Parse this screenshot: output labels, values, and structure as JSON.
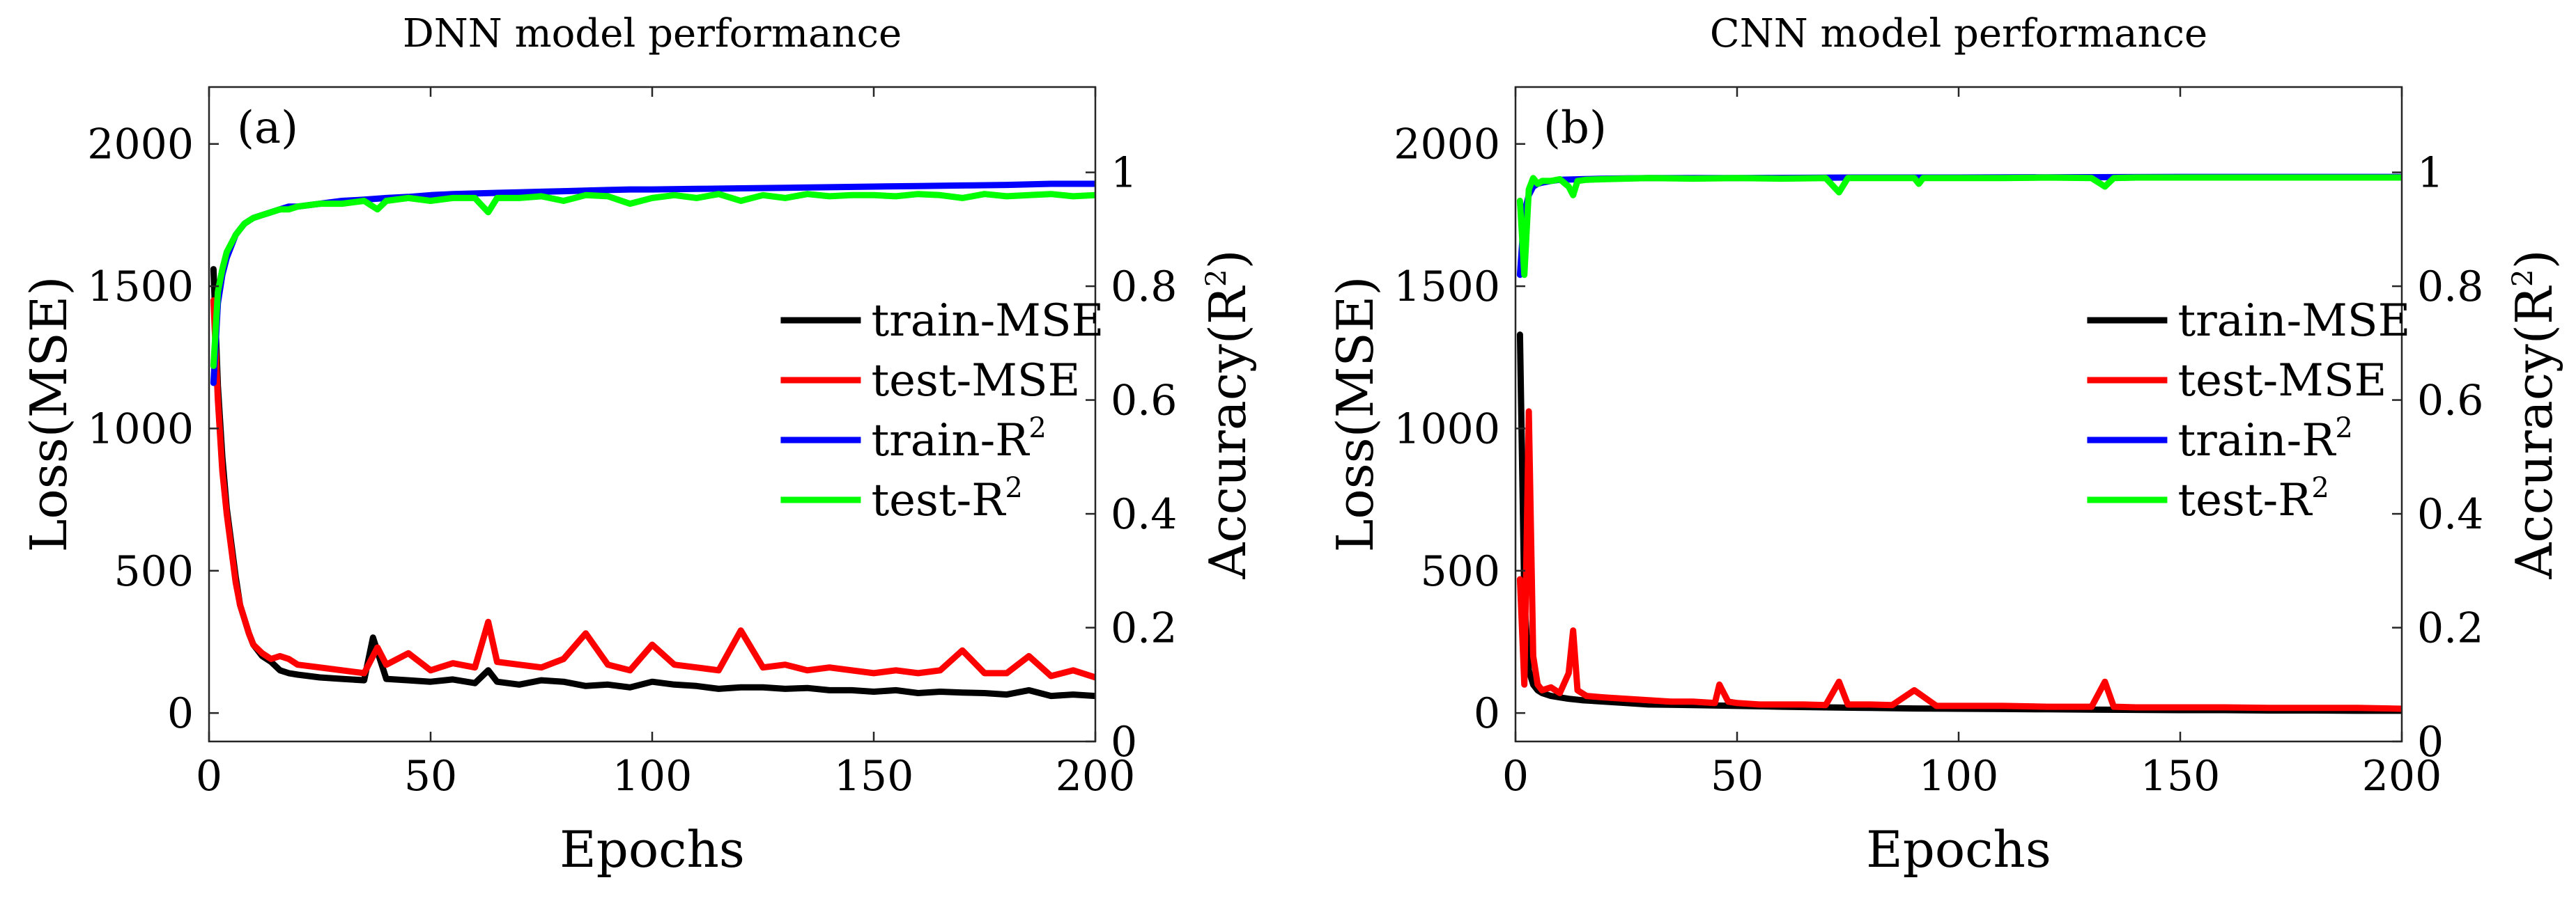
{
  "figure": {
    "panels": 2
  },
  "chart_data": [
    {
      "type": "line",
      "panel_label": "(a)",
      "title": "DNN model performance",
      "xlabel": "Epochs",
      "ylabel_left": "Loss(MSE)",
      "ylabel_right": "Accuracy(R",
      "ylabel_right_sup": "2",
      "ylabel_right_close": ")",
      "xlim": [
        0,
        200
      ],
      "ylim_left": [
        -100,
        2200
      ],
      "ylim_right": [
        0,
        1.15
      ],
      "xticks": [
        0,
        50,
        100,
        150,
        200
      ],
      "yticks_left": [
        0,
        500,
        1000,
        1500,
        2000
      ],
      "yticks_right": [
        0,
        0.2,
        0.4,
        0.6,
        0.8,
        1
      ],
      "ytick_labels_right": [
        "0",
        "0.2",
        "0.4",
        "0.6",
        "0.8",
        "1"
      ],
      "legend_position": "center-right",
      "series": [
        {
          "name": "train-MSE",
          "sup": "",
          "axis": "left",
          "color": "#000000",
          "x": [
            1,
            2,
            3,
            4,
            5,
            6,
            7,
            8,
            9,
            10,
            12,
            14,
            16,
            18,
            20,
            25,
            30,
            35,
            37,
            40,
            45,
            50,
            55,
            60,
            63,
            65,
            70,
            75,
            80,
            85,
            90,
            95,
            100,
            105,
            110,
            115,
            120,
            125,
            130,
            135,
            140,
            145,
            150,
            155,
            160,
            165,
            170,
            175,
            180,
            185,
            190,
            195,
            200
          ],
          "y": [
            1560,
            1150,
            900,
            720,
            600,
            480,
            380,
            330,
            280,
            240,
            200,
            180,
            150,
            140,
            135,
            125,
            120,
            115,
            265,
            120,
            115,
            110,
            118,
            105,
            150,
            110,
            100,
            115,
            110,
            95,
            100,
            90,
            110,
            100,
            95,
            85,
            90,
            90,
            85,
            88,
            80,
            80,
            75,
            80,
            70,
            75,
            72,
            70,
            65,
            80,
            60,
            65,
            60
          ]
        },
        {
          "name": "test-MSE",
          "sup": "",
          "axis": "left",
          "color": "#ff0000",
          "x": [
            1,
            2,
            3,
            4,
            5,
            6,
            7,
            8,
            9,
            10,
            12,
            14,
            16,
            18,
            20,
            25,
            30,
            35,
            38,
            40,
            45,
            50,
            55,
            60,
            63,
            65,
            70,
            75,
            80,
            85,
            90,
            95,
            100,
            105,
            110,
            115,
            120,
            125,
            130,
            135,
            140,
            145,
            150,
            155,
            160,
            165,
            170,
            175,
            180,
            185,
            190,
            195,
            200
          ],
          "y": [
            1450,
            1100,
            850,
            700,
            580,
            460,
            380,
            330,
            280,
            240,
            210,
            190,
            200,
            190,
            170,
            160,
            150,
            140,
            230,
            170,
            210,
            150,
            175,
            160,
            320,
            180,
            170,
            160,
            190,
            280,
            170,
            150,
            240,
            170,
            160,
            150,
            290,
            160,
            170,
            150,
            160,
            150,
            140,
            150,
            140,
            150,
            220,
            140,
            140,
            200,
            130,
            150,
            125
          ]
        },
        {
          "name": "train-R",
          "sup": "2",
          "axis": "right",
          "color": "#0000ff",
          "x": [
            1,
            2,
            3,
            4,
            5,
            6,
            7,
            8,
            9,
            10,
            12,
            14,
            16,
            18,
            20,
            25,
            30,
            35,
            40,
            45,
            50,
            55,
            60,
            65,
            70,
            75,
            80,
            85,
            90,
            95,
            100,
            110,
            120,
            130,
            140,
            150,
            160,
            170,
            180,
            190,
            200
          ],
          "y": [
            0.63,
            0.77,
            0.82,
            0.85,
            0.87,
            0.89,
            0.9,
            0.91,
            0.915,
            0.92,
            0.925,
            0.93,
            0.935,
            0.94,
            0.94,
            0.945,
            0.95,
            0.952,
            0.955,
            0.957,
            0.96,
            0.962,
            0.963,
            0.964,
            0.965,
            0.966,
            0.967,
            0.968,
            0.969,
            0.97,
            0.97,
            0.971,
            0.972,
            0.973,
            0.974,
            0.975,
            0.976,
            0.977,
            0.978,
            0.98,
            0.98
          ]
        },
        {
          "name": "test-R",
          "sup": "2",
          "axis": "right",
          "color": "#00ff00",
          "x": [
            1,
            2,
            3,
            4,
            5,
            6,
            7,
            8,
            9,
            10,
            12,
            14,
            16,
            18,
            20,
            25,
            30,
            35,
            38,
            40,
            45,
            50,
            55,
            60,
            63,
            65,
            70,
            75,
            80,
            85,
            90,
            95,
            100,
            105,
            110,
            115,
            120,
            125,
            130,
            135,
            140,
            145,
            150,
            155,
            160,
            165,
            170,
            175,
            180,
            185,
            190,
            195,
            200
          ],
          "y": [
            0.66,
            0.79,
            0.83,
            0.86,
            0.875,
            0.89,
            0.9,
            0.91,
            0.915,
            0.92,
            0.925,
            0.93,
            0.935,
            0.935,
            0.94,
            0.945,
            0.945,
            0.95,
            0.935,
            0.95,
            0.955,
            0.95,
            0.955,
            0.955,
            0.93,
            0.955,
            0.955,
            0.958,
            0.95,
            0.96,
            0.958,
            0.945,
            0.955,
            0.96,
            0.955,
            0.962,
            0.95,
            0.96,
            0.955,
            0.962,
            0.958,
            0.96,
            0.96,
            0.958,
            0.962,
            0.96,
            0.955,
            0.962,
            0.958,
            0.96,
            0.962,
            0.958,
            0.96
          ]
        }
      ]
    },
    {
      "type": "line",
      "panel_label": "(b)",
      "title": "CNN model performance",
      "xlabel": "Epochs",
      "ylabel_left": "Loss(MSE)",
      "ylabel_right": "Accuracy(R",
      "ylabel_right_sup": "2",
      "ylabel_right_close": ")",
      "xlim": [
        0,
        200
      ],
      "ylim_left": [
        -100,
        2200
      ],
      "ylim_right": [
        0,
        1.15
      ],
      "xticks": [
        0,
        50,
        100,
        150,
        200
      ],
      "yticks_left": [
        0,
        500,
        1000,
        1500,
        2000
      ],
      "yticks_right": [
        0,
        0.2,
        0.4,
        0.6,
        0.8,
        1
      ],
      "ytick_labels_right": [
        "0",
        "0.2",
        "0.4",
        "0.6",
        "0.8",
        "1"
      ],
      "legend_position": "center-right",
      "series": [
        {
          "name": "train-MSE",
          "sup": "",
          "axis": "left",
          "color": "#000000",
          "x": [
            1,
            2,
            3,
            4,
            5,
            6,
            8,
            10,
            12,
            15,
            20,
            25,
            30,
            40,
            50,
            60,
            70,
            80,
            90,
            100,
            110,
            120,
            130,
            140,
            150,
            160,
            170,
            180,
            190,
            200
          ],
          "y": [
            1330,
            400,
            150,
            100,
            80,
            70,
            60,
            55,
            50,
            45,
            40,
            35,
            30,
            28,
            25,
            22,
            20,
            18,
            16,
            15,
            14,
            13,
            12,
            11,
            10,
            10,
            9,
            9,
            8,
            8
          ]
        },
        {
          "name": "test-MSE",
          "sup": "",
          "axis": "left",
          "color": "#ff0000",
          "x": [
            1,
            2,
            3,
            4,
            5,
            6,
            8,
            10,
            12,
            13,
            14,
            16,
            20,
            25,
            30,
            35,
            40,
            45,
            46,
            48,
            50,
            55,
            60,
            65,
            70,
            73,
            75,
            80,
            85,
            90,
            95,
            100,
            110,
            120,
            130,
            133,
            135,
            140,
            150,
            160,
            170,
            180,
            190,
            200
          ],
          "y": [
            470,
            100,
            1060,
            200,
            100,
            80,
            90,
            70,
            140,
            290,
            80,
            60,
            55,
            50,
            45,
            40,
            40,
            35,
            100,
            40,
            35,
            30,
            30,
            30,
            28,
            110,
            30,
            30,
            28,
            80,
            25,
            25,
            25,
            22,
            22,
            110,
            22,
            20,
            20,
            20,
            18,
            18,
            18,
            15
          ]
        },
        {
          "name": "train-R",
          "sup": "2",
          "axis": "right",
          "color": "#0000ff",
          "x": [
            1,
            2,
            3,
            4,
            5,
            6,
            8,
            10,
            15,
            20,
            30,
            50,
            75,
            100,
            150,
            200
          ],
          "y": [
            0.82,
            0.93,
            0.96,
            0.975,
            0.98,
            0.982,
            0.985,
            0.987,
            0.988,
            0.989,
            0.99,
            0.99,
            0.991,
            0.991,
            0.992,
            0.992
          ]
        },
        {
          "name": "test-R",
          "sup": "2",
          "axis": "right",
          "color": "#00ff00",
          "x": [
            1,
            2,
            3,
            4,
            5,
            6,
            8,
            10,
            12,
            13,
            14,
            16,
            20,
            30,
            40,
            50,
            60,
            70,
            73,
            75,
            80,
            90,
            91,
            92,
            100,
            110,
            120,
            130,
            133,
            135,
            140,
            150,
            160,
            170,
            180,
            190,
            200
          ],
          "y": [
            0.95,
            0.82,
            0.97,
            0.99,
            0.98,
            0.985,
            0.985,
            0.988,
            0.975,
            0.96,
            0.985,
            0.987,
            0.988,
            0.99,
            0.989,
            0.99,
            0.989,
            0.99,
            0.965,
            0.99,
            0.99,
            0.99,
            0.98,
            0.99,
            0.99,
            0.99,
            0.991,
            0.99,
            0.975,
            0.99,
            0.991,
            0.991,
            0.991,
            0.991,
            0.991,
            0.991,
            0.991
          ]
        }
      ]
    }
  ]
}
